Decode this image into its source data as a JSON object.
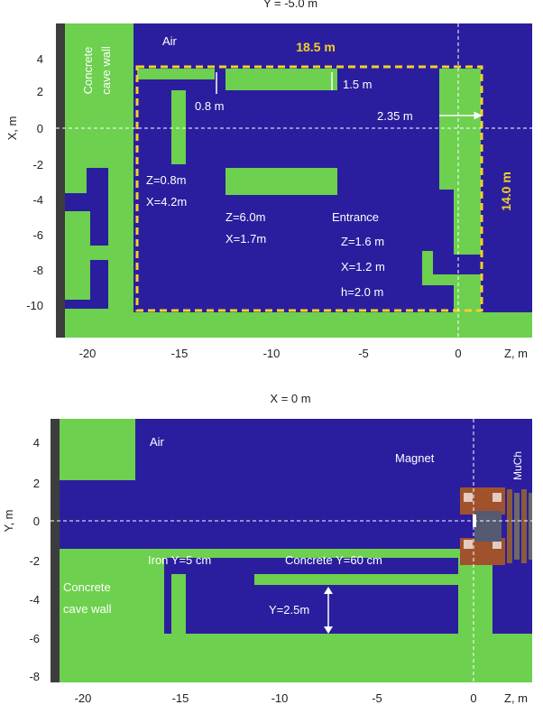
{
  "colors": {
    "air": "#2b1e9e",
    "concrete": "#6dd04e",
    "frame": "#3d3d3d",
    "highlight": "#f2d12a",
    "label": "#ffffff",
    "magnet": "#a0522d",
    "much": "#8a5a3a"
  },
  "top_panel": {
    "title": "Y = -5.0 m",
    "ylabel": "X, m",
    "xlabel": "Z, m",
    "x_ticks": [
      "-20",
      "-15",
      "-10",
      "-5",
      "0"
    ],
    "y_ticks": [
      "4",
      "2",
      "0",
      "-2",
      "-4",
      "-6",
      "-8",
      "-10"
    ],
    "labels": {
      "air": "Air",
      "wall_line1": "Concrete",
      "wall_line2": "cave wall",
      "width": "18.5 m",
      "height": "14.0 m",
      "gap": "0.8 m",
      "thickness": "1.5 m",
      "offset": "2.35 m",
      "col_z": "Z=0.8m",
      "col_x": "X=4.2m",
      "blk_z": "Z=6.0m",
      "blk_x": "X=1.7m",
      "entrance": "Entrance",
      "ent_z": "Z=1.6 m",
      "ent_x": "X=1.2 m",
      "ent_h": "h=2.0 m"
    }
  },
  "bottom_panel": {
    "title": "X = 0 m",
    "ylabel": "Y, m",
    "xlabel": "Z, m",
    "x_ticks": [
      "-20",
      "-15",
      "-10",
      "-5",
      "0"
    ],
    "y_ticks": [
      "4",
      "2",
      "0",
      "-2",
      "-4",
      "-6",
      "-8"
    ],
    "labels": {
      "air": "Air",
      "magnet": "Magnet",
      "much": "MuCh",
      "wall_line1": "Concrete",
      "wall_line2": "cave wall",
      "iron": "Iron Y=5 cm",
      "concrete": "Concrete Y=60 cm",
      "depth": "Y=2.5m"
    }
  }
}
